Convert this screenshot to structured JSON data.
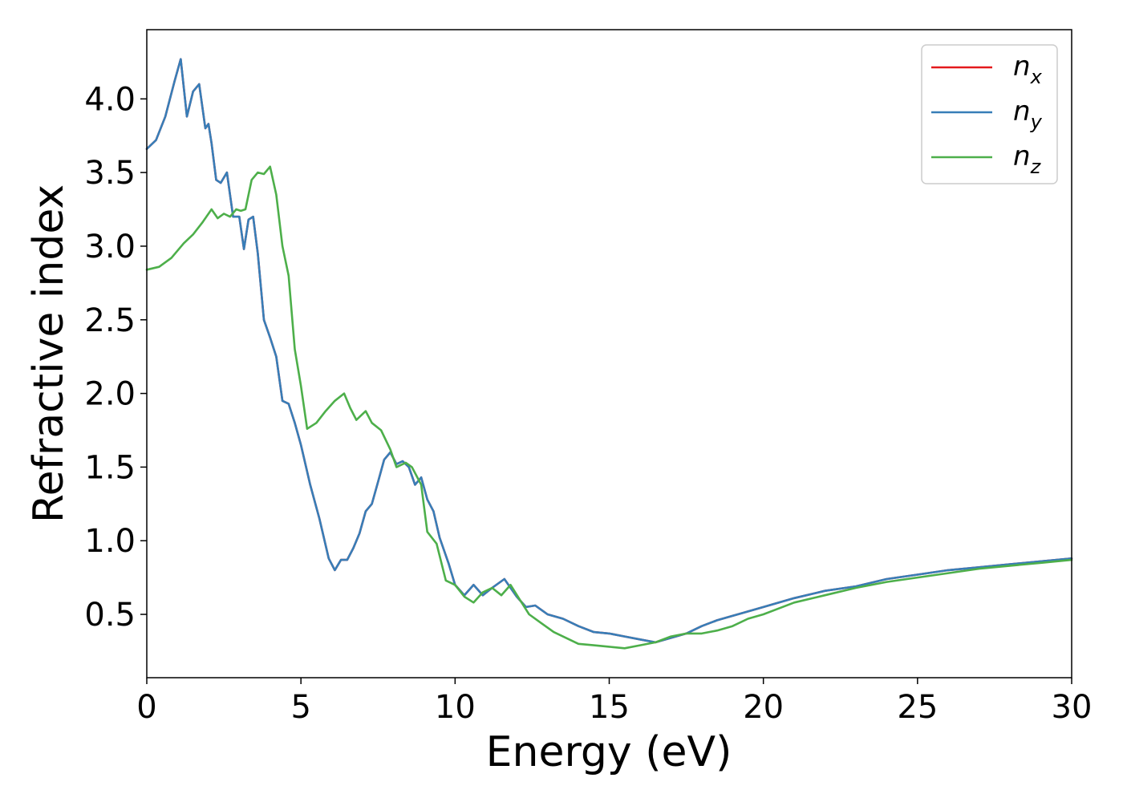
{
  "chart_data": {
    "type": "line",
    "xlabel": "Energy (eV)",
    "ylabel": "Refractive index",
    "xlim": [
      0,
      30
    ],
    "ylim": [
      0.07,
      4.47
    ],
    "xticks": [
      {
        "value": 0,
        "label": "0"
      },
      {
        "value": 5,
        "label": "5"
      },
      {
        "value": 10,
        "label": "10"
      },
      {
        "value": 15,
        "label": "15"
      },
      {
        "value": 20,
        "label": "20"
      },
      {
        "value": 25,
        "label": "25"
      },
      {
        "value": 30,
        "label": "30"
      }
    ],
    "yticks": [
      {
        "value": 0.5,
        "label": "0.5"
      },
      {
        "value": 1.0,
        "label": "1.0"
      },
      {
        "value": 1.5,
        "label": "1.5"
      },
      {
        "value": 2.0,
        "label": "2.0"
      },
      {
        "value": 2.5,
        "label": "2.5"
      },
      {
        "value": 3.0,
        "label": "3.0"
      },
      {
        "value": 3.5,
        "label": "3.5"
      },
      {
        "value": 4.0,
        "label": "4.0"
      }
    ],
    "grid": false,
    "legend_position": "top-right",
    "series": [
      {
        "name": "n_x",
        "label_main": "n",
        "label_sub": "x",
        "color": "#e41a1c",
        "x": [
          0,
          0.3,
          0.6,
          0.9,
          1.1,
          1.3,
          1.5,
          1.7,
          1.9,
          2.0,
          2.1,
          2.25,
          2.4,
          2.6,
          2.8,
          3.0,
          3.15,
          3.3,
          3.45,
          3.6,
          3.8,
          4.0,
          4.2,
          4.4,
          4.6,
          4.8,
          5.0,
          5.3,
          5.6,
          5.9,
          6.1,
          6.3,
          6.5,
          6.7,
          6.9,
          7.1,
          7.3,
          7.5,
          7.7,
          7.9,
          8.1,
          8.3,
          8.5,
          8.7,
          8.9,
          9.1,
          9.3,
          9.5,
          9.8,
          10.0,
          10.3,
          10.6,
          10.9,
          11.2,
          11.6,
          12.0,
          12.3,
          12.6,
          13.0,
          13.5,
          14.0,
          14.5,
          15.0,
          15.5,
          16.0,
          16.5,
          17.0,
          17.5,
          18.0,
          18.5,
          19.0,
          19.5,
          20.0,
          21.0,
          22.0,
          23.0,
          24.0,
          25.0,
          26.0,
          27.0,
          28.0,
          29.0,
          30.0
        ],
        "values": [
          3.66,
          3.72,
          3.88,
          4.12,
          4.27,
          3.88,
          4.05,
          4.1,
          3.8,
          3.83,
          3.7,
          3.45,
          3.43,
          3.5,
          3.2,
          3.2,
          2.98,
          3.18,
          3.2,
          2.95,
          2.5,
          2.38,
          2.25,
          1.95,
          1.93,
          1.8,
          1.65,
          1.38,
          1.15,
          0.88,
          0.8,
          0.87,
          0.87,
          0.95,
          1.05,
          1.2,
          1.25,
          1.4,
          1.55,
          1.6,
          1.52,
          1.54,
          1.5,
          1.38,
          1.43,
          1.28,
          1.2,
          1.02,
          0.84,
          0.7,
          0.63,
          0.7,
          0.63,
          0.68,
          0.74,
          0.62,
          0.55,
          0.56,
          0.5,
          0.47,
          0.42,
          0.38,
          0.37,
          0.35,
          0.33,
          0.31,
          0.34,
          0.37,
          0.42,
          0.46,
          0.49,
          0.52,
          0.55,
          0.61,
          0.66,
          0.69,
          0.74,
          0.77,
          0.8,
          0.82,
          0.84,
          0.86,
          0.88
        ]
      },
      {
        "name": "n_y",
        "label_main": "n",
        "label_sub": "y",
        "color": "#377eb8",
        "x": [
          0,
          0.3,
          0.6,
          0.9,
          1.1,
          1.3,
          1.5,
          1.7,
          1.9,
          2.0,
          2.1,
          2.25,
          2.4,
          2.6,
          2.8,
          3.0,
          3.15,
          3.3,
          3.45,
          3.6,
          3.8,
          4.0,
          4.2,
          4.4,
          4.6,
          4.8,
          5.0,
          5.3,
          5.6,
          5.9,
          6.1,
          6.3,
          6.5,
          6.7,
          6.9,
          7.1,
          7.3,
          7.5,
          7.7,
          7.9,
          8.1,
          8.3,
          8.5,
          8.7,
          8.9,
          9.1,
          9.3,
          9.5,
          9.8,
          10.0,
          10.3,
          10.6,
          10.9,
          11.2,
          11.6,
          12.0,
          12.3,
          12.6,
          13.0,
          13.5,
          14.0,
          14.5,
          15.0,
          15.5,
          16.0,
          16.5,
          17.0,
          17.5,
          18.0,
          18.5,
          19.0,
          19.5,
          20.0,
          21.0,
          22.0,
          23.0,
          24.0,
          25.0,
          26.0,
          27.0,
          28.0,
          29.0,
          30.0
        ],
        "values": [
          3.66,
          3.72,
          3.88,
          4.12,
          4.27,
          3.88,
          4.05,
          4.1,
          3.8,
          3.83,
          3.7,
          3.45,
          3.43,
          3.5,
          3.2,
          3.2,
          2.98,
          3.18,
          3.2,
          2.95,
          2.5,
          2.38,
          2.25,
          1.95,
          1.93,
          1.8,
          1.65,
          1.38,
          1.15,
          0.88,
          0.8,
          0.87,
          0.87,
          0.95,
          1.05,
          1.2,
          1.25,
          1.4,
          1.55,
          1.6,
          1.52,
          1.54,
          1.5,
          1.38,
          1.43,
          1.28,
          1.2,
          1.02,
          0.84,
          0.7,
          0.63,
          0.7,
          0.63,
          0.68,
          0.74,
          0.62,
          0.55,
          0.56,
          0.5,
          0.47,
          0.42,
          0.38,
          0.37,
          0.35,
          0.33,
          0.31,
          0.34,
          0.37,
          0.42,
          0.46,
          0.49,
          0.52,
          0.55,
          0.61,
          0.66,
          0.69,
          0.74,
          0.77,
          0.8,
          0.82,
          0.84,
          0.86,
          0.88
        ]
      },
      {
        "name": "n_z",
        "label_main": "n",
        "label_sub": "z",
        "color": "#4daf4a",
        "x": [
          0,
          0.4,
          0.8,
          1.2,
          1.5,
          1.8,
          2.1,
          2.3,
          2.5,
          2.7,
          2.9,
          3.05,
          3.2,
          3.4,
          3.6,
          3.8,
          4.0,
          4.2,
          4.4,
          4.6,
          4.8,
          5.0,
          5.2,
          5.5,
          5.8,
          6.1,
          6.4,
          6.6,
          6.8,
          7.1,
          7.3,
          7.6,
          7.9,
          8.1,
          8.4,
          8.6,
          8.9,
          9.1,
          9.4,
          9.7,
          10.0,
          10.3,
          10.6,
          10.9,
          11.2,
          11.5,
          11.8,
          12.1,
          12.4,
          12.8,
          13.2,
          13.6,
          14.0,
          14.5,
          15.0,
          15.5,
          16.0,
          16.5,
          17.0,
          17.5,
          18.0,
          18.5,
          19.0,
          19.5,
          20.0,
          21.0,
          22.0,
          23.0,
          24.0,
          25.0,
          26.0,
          27.0,
          28.0,
          29.0,
          30.0
        ],
        "values": [
          2.84,
          2.86,
          2.92,
          3.02,
          3.08,
          3.16,
          3.25,
          3.19,
          3.22,
          3.2,
          3.25,
          3.24,
          3.25,
          3.45,
          3.5,
          3.49,
          3.54,
          3.35,
          3.0,
          2.8,
          2.3,
          2.05,
          1.76,
          1.8,
          1.88,
          1.95,
          2.0,
          1.9,
          1.82,
          1.88,
          1.8,
          1.75,
          1.62,
          1.5,
          1.53,
          1.5,
          1.38,
          1.06,
          0.98,
          0.73,
          0.7,
          0.62,
          0.58,
          0.65,
          0.68,
          0.63,
          0.7,
          0.6,
          0.5,
          0.44,
          0.38,
          0.34,
          0.3,
          0.29,
          0.28,
          0.27,
          0.29,
          0.31,
          0.35,
          0.37,
          0.37,
          0.39,
          0.42,
          0.47,
          0.5,
          0.58,
          0.63,
          0.68,
          0.72,
          0.75,
          0.78,
          0.81,
          0.83,
          0.85,
          0.87
        ]
      }
    ]
  }
}
